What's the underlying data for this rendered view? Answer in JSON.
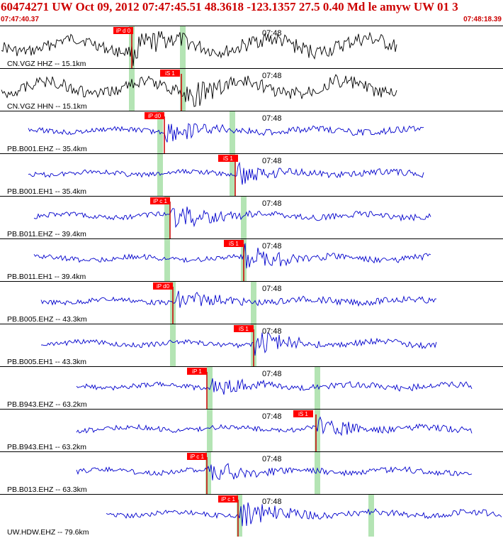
{
  "header": {
    "title": "60474271 UW Oct 09, 2012 07:47:45.51   48.3618 -123.1357 27.5 0.40 Md le amyw UW 01   3",
    "start_time": "07:47:40.37",
    "end_time": "07:48:18.39"
  },
  "colors": {
    "accent": "#cc0000",
    "pick_box": "#ff0000",
    "pick_line": "#cc0000",
    "theory_band": "#b4e4b4",
    "trace_black": "#000000",
    "trace_blue": "#0000cc",
    "divider": "#000000"
  },
  "icons": {
    "pick_flag": "red-pick-flag-icon",
    "theoretical_arrival": "green-band-icon"
  },
  "traces": [
    {
      "label": "CN.VGZ HHZ -- 15.1km",
      "time_label": "07:48",
      "color": "black",
      "pick": "iP d 0",
      "pick_type": "P"
    },
    {
      "label": "CN.VGZ HHN -- 15.1km",
      "time_label": "07:48",
      "color": "black",
      "pick": "iS 1",
      "pick_type": "S"
    },
    {
      "label": "PB.B001.EHZ -- 35.4km",
      "time_label": "07:48",
      "color": "blue",
      "pick": "iP d0",
      "pick_type": "P"
    },
    {
      "label": "PB.B001.EH1 -- 35.4km",
      "time_label": "07:48",
      "color": "blue",
      "pick": "iS 1",
      "pick_type": "S"
    },
    {
      "label": "PB.B011.EHZ -- 39.4km",
      "time_label": "07:48",
      "color": "blue",
      "pick": "iP c 1",
      "pick_type": "P"
    },
    {
      "label": "PB.B011.EH1 -- 39.4km",
      "time_label": "07:48",
      "color": "blue",
      "pick": "iS 1",
      "pick_type": "S"
    },
    {
      "label": "PB.B005.EHZ -- 43.3km",
      "time_label": "07:48",
      "color": "blue",
      "pick": "iP d0",
      "pick_type": "P"
    },
    {
      "label": "PB.B005.EH1 -- 43.3km",
      "time_label": "07:48",
      "color": "blue",
      "pick": "iS 1",
      "pick_type": "S"
    },
    {
      "label": "PB.B943.EHZ -- 63.2km",
      "time_label": "07:48",
      "color": "blue",
      "pick": "iP 1",
      "pick_type": "P"
    },
    {
      "label": "PB.B943.EH1 -- 63.2km",
      "time_label": "07:48",
      "color": "blue",
      "pick": "iS 1",
      "pick_type": "S"
    },
    {
      "label": "PB.B013.EHZ -- 63.3km",
      "time_label": "07:48",
      "color": "blue",
      "pick": "iP c 1",
      "pick_type": "P"
    },
    {
      "label": "UW.HDW.EHZ -- 79.6km",
      "time_label": "07:48",
      "color": "blue",
      "pick": "iP c 1",
      "pick_type": "P"
    }
  ]
}
